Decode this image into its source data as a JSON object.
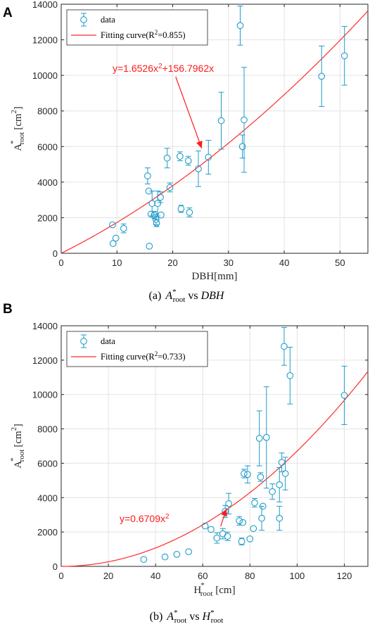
{
  "panels": [
    {
      "letter": "A",
      "caption": {
        "prefix": "(a)",
        "main": "A",
        "sup": "*",
        "sub": "root",
        "mid": " vs ",
        "second": "DBH",
        "second_sup": "",
        "second_sub": ""
      },
      "legend": {
        "data": "data",
        "fit_prefix": "Fitting curve(R",
        "fit_sup": "2",
        "fit_suffix": "=0.855)"
      },
      "annotation": {
        "text": "y=1.6526x",
        "sup": "2",
        "rest": "+156.7962x",
        "arrow_to": [
          25.2,
          5900
        ]
      },
      "ylabel": {
        "main": "A",
        "sup": "*",
        "sub": "root",
        "unit": "[cm",
        "unit_sup": "2",
        "unit_end": "]"
      },
      "xlabel": {
        "main": "DBH[mm]",
        "sup": "",
        "sub": "",
        "unit": ""
      }
    },
    {
      "letter": "B",
      "caption": {
        "prefix": "(b)",
        "main": "A",
        "sup": "*",
        "sub": "root",
        "mid": " vs ",
        "second": "H",
        "second_sup": "*",
        "second_sub": "root"
      },
      "legend": {
        "data": "data",
        "fit_prefix": "Fitting curve(R",
        "fit_sup": "2",
        "fit_suffix": "=0.733)"
      },
      "annotation": {
        "text": "y=0.6709x",
        "sup": "2",
        "rest": "",
        "arrow_to": [
          70,
          3350
        ]
      },
      "ylabel": {
        "main": "A",
        "sup": "*",
        "sub": "root",
        "unit": "[cm",
        "unit_sup": "2",
        "unit_end": "]"
      },
      "xlabel": {
        "main": "H",
        "sup": "*",
        "sub": "root",
        "unit": " [cm]"
      }
    }
  ],
  "chart_data": [
    {
      "type": "scatter",
      "title": "",
      "xlabel": "DBH[mm]",
      "ylabel": "A*root [cm2]",
      "xlim": [
        0,
        55
      ],
      "ylim": [
        0,
        14000
      ],
      "xticks": [
        0,
        10,
        20,
        30,
        40,
        50
      ],
      "yticks": [
        0,
        2000,
        4000,
        6000,
        8000,
        10000,
        12000,
        14000
      ],
      "grid": true,
      "legend_position": "top-left",
      "colors": {
        "data": "#1f9bc8",
        "fit": "#ff2b2b"
      },
      "series": [
        {
          "name": "data",
          "points": [
            {
              "x": 9.2,
              "y": 1600,
              "err": 0
            },
            {
              "x": 9.3,
              "y": 550,
              "err": 0
            },
            {
              "x": 9.8,
              "y": 850,
              "err": 0
            },
            {
              "x": 11.2,
              "y": 1400,
              "err": 250
            },
            {
              "x": 15.5,
              "y": 4350,
              "err": 450
            },
            {
              "x": 15.7,
              "y": 3500,
              "err": 0
            },
            {
              "x": 15.8,
              "y": 400,
              "err": 0
            },
            {
              "x": 16.1,
              "y": 2200,
              "err": 0
            },
            {
              "x": 16.3,
              "y": 2800,
              "err": 700
            },
            {
              "x": 16.7,
              "y": 2150,
              "err": 200
            },
            {
              "x": 17.0,
              "y": 1900,
              "err": 300
            },
            {
              "x": 17.1,
              "y": 1700,
              "err": 200
            },
            {
              "x": 17.3,
              "y": 2800,
              "err": 700
            },
            {
              "x": 17.8,
              "y": 3150,
              "err": 300
            },
            {
              "x": 17.9,
              "y": 2150,
              "err": 0
            },
            {
              "x": 19.0,
              "y": 5350,
              "err": 550
            },
            {
              "x": 19.5,
              "y": 3700,
              "err": 250
            },
            {
              "x": 21.3,
              "y": 5450,
              "err": 250
            },
            {
              "x": 21.5,
              "y": 2500,
              "err": 200
            },
            {
              "x": 22.8,
              "y": 5200,
              "err": 250
            },
            {
              "x": 23.0,
              "y": 2300,
              "err": 250
            },
            {
              "x": 24.6,
              "y": 4750,
              "err": 1000
            },
            {
              "x": 26.4,
              "y": 5400,
              "err": 950
            },
            {
              "x": 28.7,
              "y": 7450,
              "err": 1600
            },
            {
              "x": 32.1,
              "y": 12800,
              "err": 1100
            },
            {
              "x": 32.5,
              "y": 6000,
              "err": 650
            },
            {
              "x": 32.8,
              "y": 7500,
              "err": 2950
            },
            {
              "x": 46.7,
              "y": 9950,
              "err": 1700
            },
            {
              "x": 50.8,
              "y": 11100,
              "err": 1650
            }
          ]
        },
        {
          "name": "Fitting curve(R2=0.855)",
          "equation": "y=1.6526x^2+156.7962x",
          "coefficients": {
            "a": 1.6526,
            "b": 156.7962
          }
        }
      ]
    },
    {
      "type": "scatter",
      "title": "",
      "xlabel": "H*root [cm]",
      "ylabel": "A*root [cm2]",
      "xlim": [
        0,
        130
      ],
      "ylim": [
        0,
        14000
      ],
      "xticks": [
        0,
        20,
        40,
        60,
        80,
        100,
        120
      ],
      "yticks": [
        0,
        2000,
        4000,
        6000,
        8000,
        10000,
        12000,
        14000
      ],
      "grid": true,
      "legend_position": "top-left",
      "colors": {
        "data": "#1f9bc8",
        "fit": "#ff2b2b"
      },
      "series": [
        {
          "name": "data",
          "points": [
            {
              "x": 35,
              "y": 400,
              "err": 0
            },
            {
              "x": 44,
              "y": 550,
              "err": 0
            },
            {
              "x": 49,
              "y": 700,
              "err": 0
            },
            {
              "x": 54,
              "y": 850,
              "err": 0
            },
            {
              "x": 61,
              "y": 2350,
              "err": 0
            },
            {
              "x": 63.5,
              "y": 2150,
              "err": 0
            },
            {
              "x": 66,
              "y": 1650,
              "err": 300
            },
            {
              "x": 68.5,
              "y": 1900,
              "err": 300
            },
            {
              "x": 69.5,
              "y": 3200,
              "err": 350
            },
            {
              "x": 70.5,
              "y": 1750,
              "err": 250
            },
            {
              "x": 71,
              "y": 3650,
              "err": 600
            },
            {
              "x": 75.5,
              "y": 2650,
              "err": 250
            },
            {
              "x": 76.5,
              "y": 1450,
              "err": 200
            },
            {
              "x": 77,
              "y": 2550,
              "err": 0
            },
            {
              "x": 77.5,
              "y": 5400,
              "err": 250
            },
            {
              "x": 79,
              "y": 5350,
              "err": 500
            },
            {
              "x": 80,
              "y": 1600,
              "err": 0
            },
            {
              "x": 81.5,
              "y": 2200,
              "err": 0
            },
            {
              "x": 82,
              "y": 3700,
              "err": 250
            },
            {
              "x": 84,
              "y": 7450,
              "err": 1600
            },
            {
              "x": 84.5,
              "y": 5200,
              "err": 250
            },
            {
              "x": 85,
              "y": 2800,
              "err": 700
            },
            {
              "x": 85.5,
              "y": 3500,
              "err": 0
            },
            {
              "x": 87,
              "y": 7500,
              "err": 2950
            },
            {
              "x": 89.5,
              "y": 4350,
              "err": 450
            },
            {
              "x": 92.5,
              "y": 4750,
              "err": 1000
            },
            {
              "x": 92.5,
              "y": 2800,
              "err": 700
            },
            {
              "x": 93.5,
              "y": 6050,
              "err": 550
            },
            {
              "x": 94.5,
              "y": 12800,
              "err": 1100
            },
            {
              "x": 95,
              "y": 5400,
              "err": 950
            },
            {
              "x": 97,
              "y": 11100,
              "err": 1650
            },
            {
              "x": 120,
              "y": 9950,
              "err": 1700
            }
          ]
        },
        {
          "name": "Fitting curve(R2=0.733)",
          "equation": "y=0.6709x^2",
          "coefficients": {
            "a": 0.6709,
            "b": 0
          }
        }
      ]
    }
  ]
}
